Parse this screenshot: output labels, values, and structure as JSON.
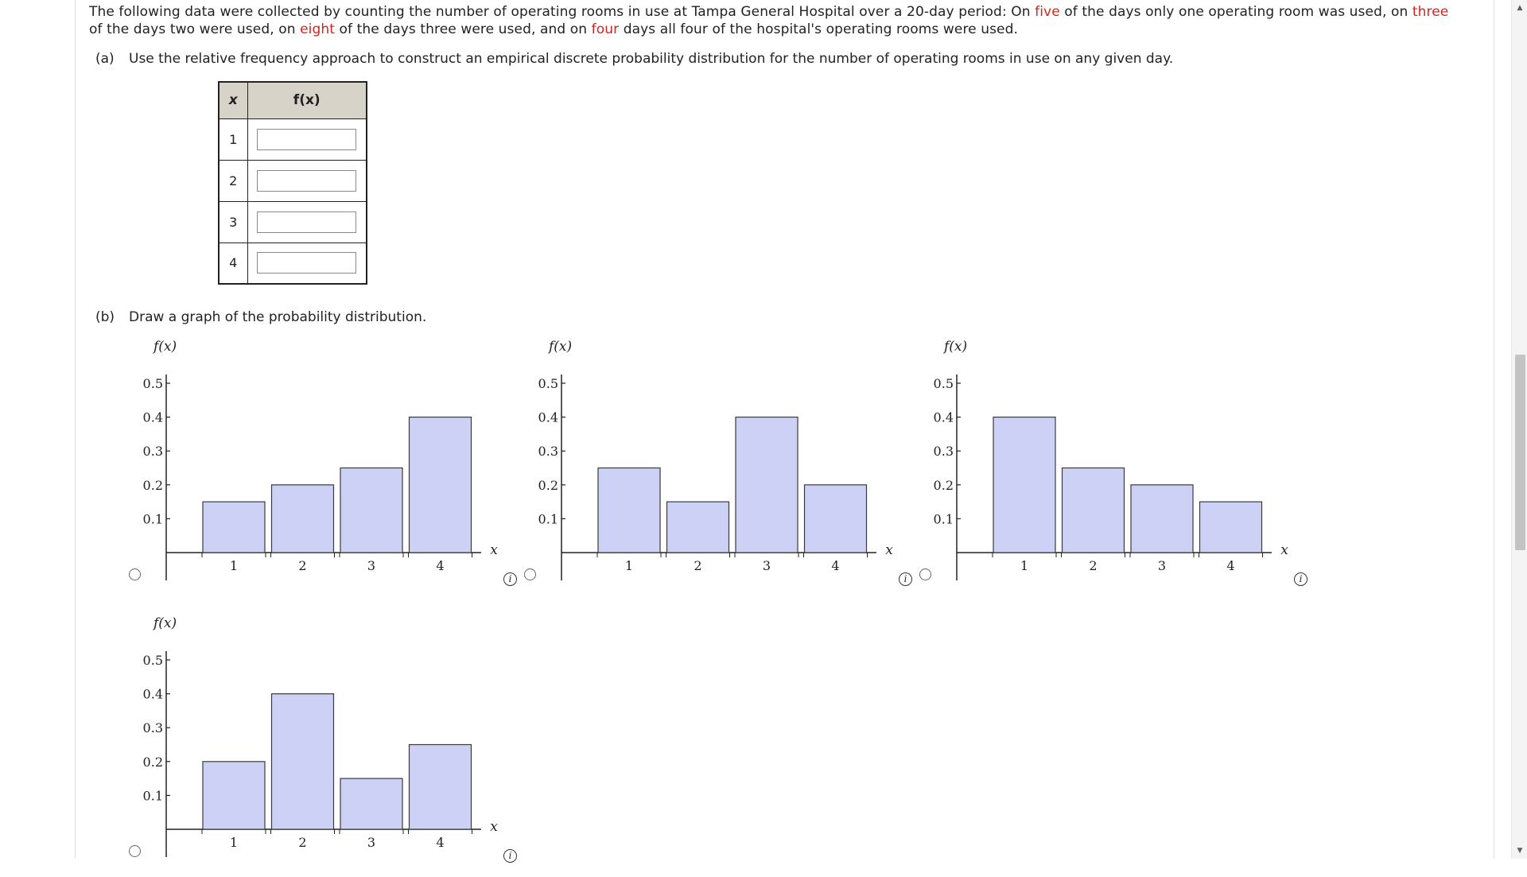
{
  "intro": {
    "p1": "The following data were collected by counting the number of operating rooms in use at Tampa General Hospital over a 20-day period: On ",
    "red1": "five",
    "p2": " of the days only one operating room was used, on ",
    "red2": "three",
    "p3": " of the days two were used, on ",
    "red3": "eight",
    "p4": " of the days three were used, and on ",
    "red4": "four",
    "p5": " days all four of the hospital's operating rooms were used."
  },
  "part_a": {
    "label": "(a)",
    "text": "Use the relative frequency approach to construct an empirical discrete probability distribution for the number of operating rooms in use on any given day.",
    "table": {
      "header_x": "x",
      "header_fx": "f(x)",
      "rows": [
        {
          "x": "1",
          "value": ""
        },
        {
          "x": "2",
          "value": ""
        },
        {
          "x": "3",
          "value": ""
        },
        {
          "x": "4",
          "value": ""
        }
      ]
    }
  },
  "part_b": {
    "label": "(b)",
    "text": "Draw a graph of the probability distribution."
  },
  "chart_data": [
    {
      "type": "bar",
      "ylabel": "f(x)",
      "xlabel": "x",
      "categories": [
        "1",
        "2",
        "3",
        "4"
      ],
      "values": [
        0.15,
        0.2,
        0.25,
        0.4
      ],
      "y_ticks": [
        "0.1",
        "0.2",
        "0.3",
        "0.4",
        "0.5"
      ],
      "ylim": [
        0,
        0.5
      ]
    },
    {
      "type": "bar",
      "ylabel": "f(x)",
      "xlabel": "x",
      "categories": [
        "1",
        "2",
        "3",
        "4"
      ],
      "values": [
        0.25,
        0.15,
        0.4,
        0.2
      ],
      "y_ticks": [
        "0.1",
        "0.2",
        "0.3",
        "0.4",
        "0.5"
      ],
      "ylim": [
        0,
        0.5
      ]
    },
    {
      "type": "bar",
      "ylabel": "f(x)",
      "xlabel": "x",
      "categories": [
        "1",
        "2",
        "3",
        "4"
      ],
      "values": [
        0.4,
        0.25,
        0.2,
        0.15
      ],
      "y_ticks": [
        "0.1",
        "0.2",
        "0.3",
        "0.4",
        "0.5"
      ],
      "ylim": [
        0,
        0.5
      ]
    },
    {
      "type": "bar",
      "ylabel": "f(x)",
      "xlabel": "x",
      "categories": [
        "1",
        "2",
        "3",
        "4"
      ],
      "values": [
        0.2,
        0.4,
        0.15,
        0.25
      ],
      "y_ticks": [
        "0.1",
        "0.2",
        "0.3",
        "0.4",
        "0.5"
      ],
      "ylim": [
        0,
        0.5
      ]
    }
  ],
  "colors": {
    "bar_fill": "#ccd1f5",
    "bar_stroke": "#3a3a3a",
    "accent_red": "#d0261f"
  },
  "icons": {
    "info": "i"
  }
}
